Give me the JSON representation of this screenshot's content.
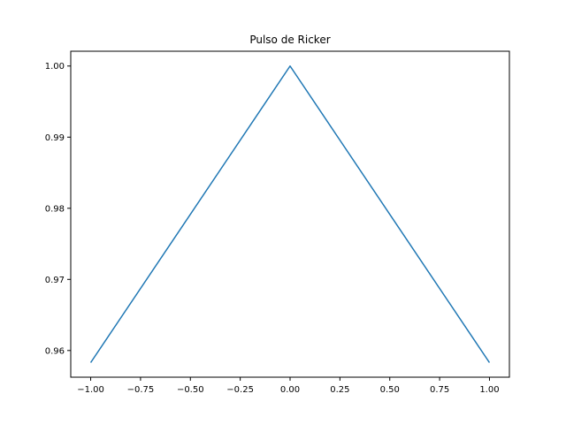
{
  "chart_data": {
    "type": "line",
    "title": "Pulso de Ricker",
    "xlabel": "",
    "ylabel": "",
    "xlim": [
      -1.1,
      1.1
    ],
    "ylim": [
      0.95625,
      1.00208
    ],
    "xticks": [
      -1.0,
      -0.75,
      -0.5,
      -0.25,
      0.0,
      0.25,
      0.5,
      0.75,
      1.0
    ],
    "xtick_labels": [
      "−1.00",
      "−0.75",
      "−0.50",
      "−0.25",
      "0.00",
      "0.25",
      "0.50",
      "0.75",
      "1.00"
    ],
    "yticks": [
      0.96,
      0.97,
      0.98,
      0.99,
      1.0
    ],
    "ytick_labels": [
      "0.96",
      "0.97",
      "0.98",
      "0.99",
      "1.00"
    ],
    "grid": false,
    "series": [
      {
        "color": "#1f77b4",
        "x": [
          -1.0,
          0.0,
          1.0
        ],
        "y": [
          0.9583,
          1.0,
          0.9583
        ]
      }
    ]
  }
}
